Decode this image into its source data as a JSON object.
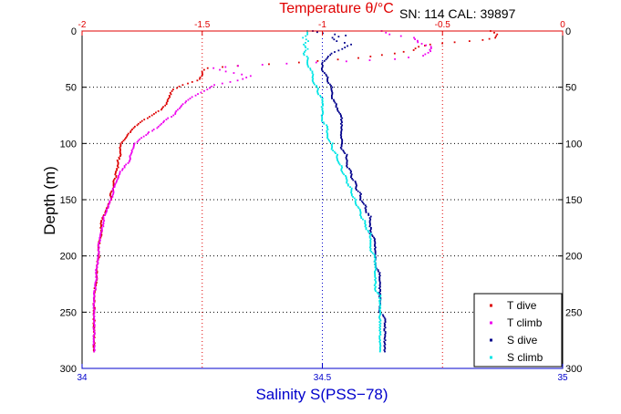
{
  "header": {
    "temperature_title": "Temperature θ/°C",
    "sn_cal": "SN: 114  CAL: 39897"
  },
  "axes": {
    "salinity_label": "Salinity S(PSS−78)",
    "depth_label": "Depth (m)"
  },
  "colors": {
    "temperature": "#e00000",
    "salinity": "#0000cc",
    "t_dive": "#dd0000",
    "t_climb": "#ee00ee",
    "s_dive": "#00008b",
    "s_climb": "#00e5e5"
  },
  "chart_data": {
    "type": "scatter",
    "title": "Temperature θ/°C",
    "xlabel": "Salinity S(PSS−78)",
    "x2label": "Temperature θ/°C",
    "ylabel": "Depth (m)",
    "annotation": "SN: 114  CAL: 39897",
    "xlim_salinity": [
      34,
      35
    ],
    "xlim_temperature": [
      -2,
      0
    ],
    "ylim": [
      0,
      300
    ],
    "y_reversed": true,
    "grid": true,
    "legend_position": "bottom-right",
    "salinity_ticks": [
      "34",
      "34.5",
      "35"
    ],
    "salinity_tick_values": [
      34,
      34.5,
      35
    ],
    "temperature_ticks": [
      "-2",
      "-1.5",
      "-1",
      "-0.5",
      "0"
    ],
    "temperature_tick_values": [
      -2,
      -1.5,
      -1,
      -0.5,
      0
    ],
    "depth_ticks": [
      "0",
      "50",
      "100",
      "150",
      "200",
      "250",
      "300"
    ],
    "depth_tick_values": [
      0,
      50,
      100,
      150,
      200,
      250,
      300
    ],
    "series": [
      {
        "name": "T dive",
        "axis": "temperature",
        "color": "#dd0000",
        "points": [
          [
            -0.3,
            0
          ],
          [
            -0.27,
            3
          ],
          [
            -0.28,
            6
          ],
          [
            -0.33,
            8
          ],
          [
            -0.45,
            10
          ],
          [
            -0.55,
            12
          ],
          [
            -0.6,
            14
          ],
          [
            -0.62,
            17
          ],
          [
            -0.7,
            20
          ],
          [
            -0.85,
            24
          ],
          [
            -1.1,
            28
          ],
          [
            -1.35,
            31
          ],
          [
            -1.48,
            33
          ],
          [
            -1.5,
            36
          ],
          [
            -1.5,
            40
          ],
          [
            -1.52,
            44
          ],
          [
            -1.58,
            48
          ],
          [
            -1.62,
            52
          ],
          [
            -1.63,
            55
          ],
          [
            -1.64,
            60
          ],
          [
            -1.65,
            65
          ],
          [
            -1.67,
            70
          ],
          [
            -1.71,
            75
          ],
          [
            -1.75,
            80
          ],
          [
            -1.78,
            85
          ],
          [
            -1.8,
            90
          ],
          [
            -1.82,
            95
          ],
          [
            -1.84,
            100
          ],
          [
            -1.84,
            105
          ],
          [
            -1.84,
            110
          ],
          [
            -1.85,
            115
          ],
          [
            -1.85,
            120
          ],
          [
            -1.86,
            125
          ],
          [
            -1.86,
            130
          ],
          [
            -1.87,
            135
          ],
          [
            -1.87,
            140
          ],
          [
            -1.88,
            145
          ],
          [
            -1.88,
            150
          ],
          [
            -1.89,
            155
          ],
          [
            -1.9,
            160
          ],
          [
            -1.91,
            165
          ],
          [
            -1.92,
            170
          ],
          [
            -1.92,
            180
          ],
          [
            -1.93,
            190
          ],
          [
            -1.93,
            200
          ],
          [
            -1.94,
            210
          ],
          [
            -1.94,
            220
          ],
          [
            -1.95,
            235
          ],
          [
            -1.95,
            250
          ],
          [
            -1.95,
            265
          ],
          [
            -1.95,
            275
          ],
          [
            -1.95,
            285
          ]
        ]
      },
      {
        "name": "T climb",
        "axis": "temperature",
        "color": "#ee00ee",
        "points": [
          [
            -0.75,
            0
          ],
          [
            -0.72,
            3
          ],
          [
            -0.62,
            6
          ],
          [
            -0.6,
            10
          ],
          [
            -0.55,
            14
          ],
          [
            -0.55,
            18
          ],
          [
            -0.58,
            22
          ],
          [
            -0.7,
            25
          ],
          [
            -0.9,
            27
          ],
          [
            -1.15,
            29
          ],
          [
            -1.35,
            31
          ],
          [
            -1.45,
            33
          ],
          [
            -1.4,
            36
          ],
          [
            -1.3,
            40
          ],
          [
            -1.35,
            44
          ],
          [
            -1.45,
            48
          ],
          [
            -1.48,
            52
          ],
          [
            -1.52,
            56
          ],
          [
            -1.55,
            60
          ],
          [
            -1.58,
            65
          ],
          [
            -1.6,
            70
          ],
          [
            -1.62,
            75
          ],
          [
            -1.66,
            80
          ],
          [
            -1.68,
            85
          ],
          [
            -1.72,
            90
          ],
          [
            -1.75,
            95
          ],
          [
            -1.78,
            100
          ],
          [
            -1.79,
            105
          ],
          [
            -1.8,
            110
          ],
          [
            -1.8,
            115
          ],
          [
            -1.82,
            120
          ],
          [
            -1.84,
            125
          ],
          [
            -1.85,
            130
          ],
          [
            -1.86,
            135
          ],
          [
            -1.87,
            140
          ],
          [
            -1.87,
            145
          ],
          [
            -1.88,
            150
          ],
          [
            -1.89,
            155
          ],
          [
            -1.9,
            160
          ],
          [
            -1.91,
            165
          ],
          [
            -1.91,
            170
          ],
          [
            -1.92,
            180
          ],
          [
            -1.93,
            190
          ],
          [
            -1.93,
            200
          ],
          [
            -1.94,
            210
          ],
          [
            -1.94,
            220
          ],
          [
            -1.95,
            235
          ],
          [
            -1.95,
            250
          ],
          [
            -1.95,
            265
          ],
          [
            -1.95,
            275
          ],
          [
            -1.95,
            285
          ]
        ]
      },
      {
        "name": "S dive",
        "axis": "salinity",
        "color": "#00008b",
        "points": [
          [
            34.48,
            0
          ],
          [
            34.5,
            2
          ],
          [
            34.55,
            4
          ],
          [
            34.52,
            6
          ],
          [
            34.53,
            9
          ],
          [
            34.56,
            12
          ],
          [
            34.54,
            16
          ],
          [
            34.52,
            20
          ],
          [
            34.51,
            24
          ],
          [
            34.5,
            28
          ],
          [
            34.5,
            32
          ],
          [
            34.5,
            36
          ],
          [
            34.51,
            40
          ],
          [
            34.51,
            45
          ],
          [
            34.52,
            50
          ],
          [
            34.52,
            55
          ],
          [
            34.52,
            60
          ],
          [
            34.53,
            65
          ],
          [
            34.53,
            70
          ],
          [
            34.54,
            75
          ],
          [
            34.54,
            80
          ],
          [
            34.54,
            85
          ],
          [
            34.54,
            90
          ],
          [
            34.54,
            95
          ],
          [
            34.54,
            100
          ],
          [
            34.54,
            105
          ],
          [
            34.55,
            110
          ],
          [
            34.55,
            115
          ],
          [
            34.55,
            120
          ],
          [
            34.56,
            125
          ],
          [
            34.56,
            130
          ],
          [
            34.57,
            135
          ],
          [
            34.57,
            140
          ],
          [
            34.58,
            145
          ],
          [
            34.58,
            150
          ],
          [
            34.59,
            155
          ],
          [
            34.59,
            160
          ],
          [
            34.6,
            165
          ],
          [
            34.6,
            170
          ],
          [
            34.6,
            175
          ],
          [
            34.6,
            180
          ],
          [
            34.61,
            185
          ],
          [
            34.61,
            190
          ],
          [
            34.61,
            195
          ],
          [
            34.61,
            200
          ],
          [
            34.61,
            205
          ],
          [
            34.61,
            210
          ],
          [
            34.62,
            215
          ],
          [
            34.62,
            220
          ],
          [
            34.62,
            225
          ],
          [
            34.62,
            230
          ],
          [
            34.62,
            235
          ],
          [
            34.62,
            240
          ],
          [
            34.62,
            245
          ],
          [
            34.62,
            250
          ],
          [
            34.63,
            255
          ],
          [
            34.63,
            260
          ],
          [
            34.63,
            265
          ],
          [
            34.63,
            270
          ],
          [
            34.63,
            275
          ],
          [
            34.63,
            280
          ],
          [
            34.63,
            285
          ]
        ]
      },
      {
        "name": "S climb",
        "axis": "salinity",
        "color": "#00e5e5",
        "points": [
          [
            34.47,
            0
          ],
          [
            34.47,
            3
          ],
          [
            34.46,
            6
          ],
          [
            34.47,
            9
          ],
          [
            34.46,
            12
          ],
          [
            34.47,
            16
          ],
          [
            34.46,
            20
          ],
          [
            34.47,
            24
          ],
          [
            34.47,
            28
          ],
          [
            34.47,
            32
          ],
          [
            34.48,
            36
          ],
          [
            34.48,
            40
          ],
          [
            34.48,
            45
          ],
          [
            34.49,
            50
          ],
          [
            34.49,
            55
          ],
          [
            34.5,
            60
          ],
          [
            34.5,
            65
          ],
          [
            34.5,
            70
          ],
          [
            34.5,
            75
          ],
          [
            34.5,
            80
          ],
          [
            34.51,
            85
          ],
          [
            34.51,
            90
          ],
          [
            34.51,
            95
          ],
          [
            34.52,
            100
          ],
          [
            34.52,
            105
          ],
          [
            34.53,
            110
          ],
          [
            34.53,
            115
          ],
          [
            34.54,
            120
          ],
          [
            34.54,
            125
          ],
          [
            34.55,
            130
          ],
          [
            34.55,
            135
          ],
          [
            34.56,
            140
          ],
          [
            34.56,
            145
          ],
          [
            34.57,
            150
          ],
          [
            34.57,
            155
          ],
          [
            34.58,
            160
          ],
          [
            34.58,
            165
          ],
          [
            34.59,
            170
          ],
          [
            34.59,
            175
          ],
          [
            34.6,
            180
          ],
          [
            34.6,
            185
          ],
          [
            34.6,
            190
          ],
          [
            34.6,
            195
          ],
          [
            34.61,
            200
          ],
          [
            34.61,
            205
          ],
          [
            34.61,
            210
          ],
          [
            34.61,
            215
          ],
          [
            34.61,
            220
          ],
          [
            34.61,
            225
          ],
          [
            34.61,
            230
          ],
          [
            34.62,
            235
          ],
          [
            34.62,
            240
          ],
          [
            34.62,
            245
          ],
          [
            34.62,
            250
          ],
          [
            34.62,
            255
          ],
          [
            34.62,
            260
          ],
          [
            34.62,
            265
          ],
          [
            34.62,
            270
          ],
          [
            34.62,
            275
          ],
          [
            34.62,
            280
          ],
          [
            34.62,
            285
          ]
        ]
      }
    ]
  }
}
